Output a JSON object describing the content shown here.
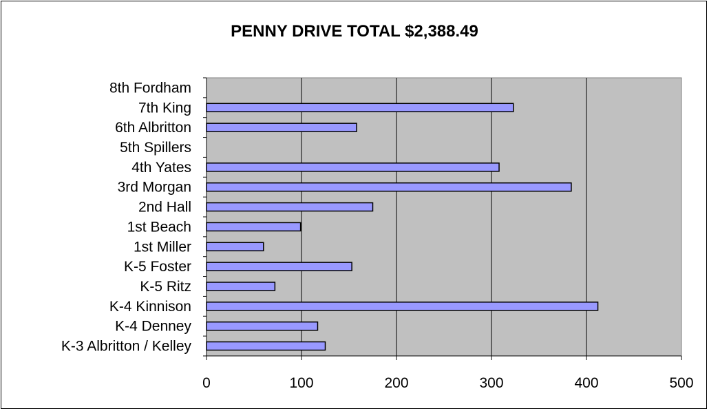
{
  "chart_data": {
    "type": "bar",
    "orientation": "horizontal",
    "title": "PENNY DRIVE TOTAL $2,388.49",
    "xlabel": "",
    "ylabel": "",
    "xlim": [
      0,
      500
    ],
    "x_ticks": [
      "0",
      "100",
      "200",
      "300",
      "400",
      "500"
    ],
    "grid": true,
    "legend": "none",
    "categories": [
      "K-3 Albritton / Kelley",
      "K-4 Denney",
      "K-4 Kinnison",
      "K-5 Ritz",
      "K-5 Foster",
      "1st Miller",
      "1st Beach",
      "2nd Hall",
      "3rd Morgan",
      "4th Yates",
      "5th Spillers",
      "6th Albritton",
      "7th King",
      "8th Fordham"
    ],
    "values": [
      125,
      117,
      412,
      72,
      153,
      60,
      99,
      175,
      384,
      308,
      0,
      158,
      323,
      0
    ],
    "colors": {
      "bar": "#9999ff",
      "plot_background": "#c0c0c0",
      "gridline": "#000000",
      "bar_outline": "#000000"
    }
  }
}
